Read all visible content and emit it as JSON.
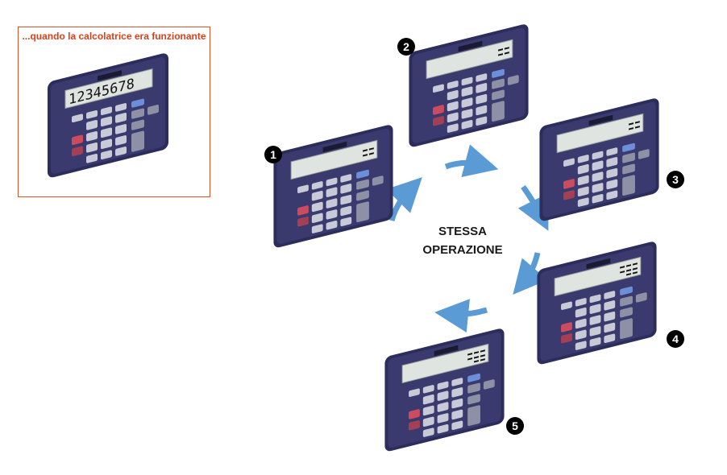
{
  "reference": {
    "caption": "...quando la calcolatrice era funzionante",
    "display": "12345678"
  },
  "center": {
    "line1": "STESSA",
    "line2": "OPERAZIONE"
  },
  "calculators": [
    {
      "number": "1"
    },
    {
      "number": "2"
    },
    {
      "number": "3"
    },
    {
      "number": "4"
    },
    {
      "number": "5"
    }
  ],
  "colors": {
    "arrow": "#5b9bd5",
    "calc_body": "#2f2f5e",
    "ref_border": "#d9532a",
    "caption": "#d9401a"
  },
  "icons": {
    "calculator": "calculator-icon",
    "arrow": "curved-arrow-icon"
  }
}
